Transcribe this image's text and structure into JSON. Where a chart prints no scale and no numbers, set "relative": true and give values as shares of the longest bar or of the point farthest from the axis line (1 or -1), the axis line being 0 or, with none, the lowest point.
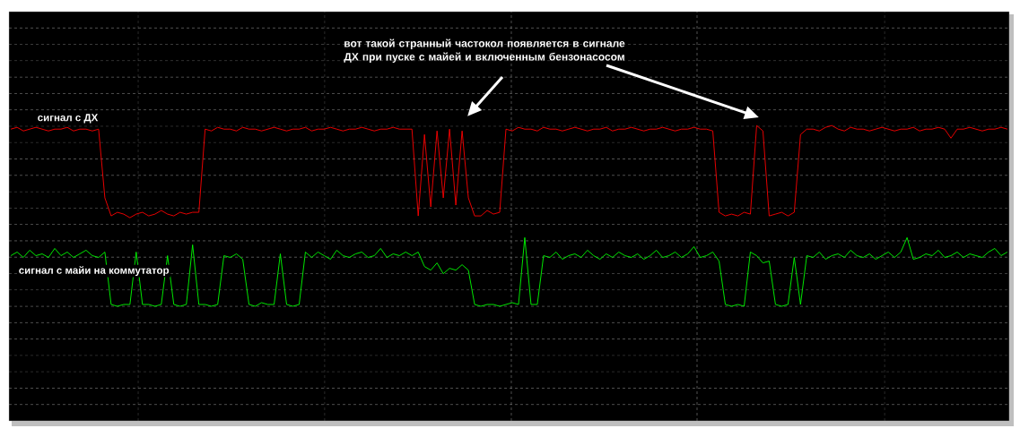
{
  "chart_data": {
    "type": "line",
    "relative": true,
    "grid": true,
    "annotations": [
      "вот такой странный частокол появляется в сигнале ДХ при пуске с майей и включенным бензонасосом"
    ],
    "categories": [
      null,
      null,
      null,
      null,
      null,
      null,
      null,
      null,
      null,
      null,
      null,
      null,
      null,
      null,
      null,
      null,
      null,
      null,
      null,
      null,
      null,
      null,
      null,
      null,
      null,
      null,
      null,
      null,
      null,
      null,
      null,
      null,
      null,
      null,
      null,
      null,
      null,
      null,
      null,
      null,
      null,
      null,
      null,
      null,
      null,
      null,
      null,
      null,
      null,
      null,
      null,
      null,
      null,
      null,
      null,
      null,
      null,
      null,
      null,
      null,
      null,
      null,
      null,
      null,
      null,
      null,
      null,
      null,
      null,
      null,
      null,
      null,
      null,
      null,
      null,
      null,
      null,
      null,
      null,
      null,
      null,
      null,
      null,
      null,
      null,
      null,
      null,
      null,
      null,
      null,
      null,
      null,
      null,
      null,
      null,
      null,
      null,
      null,
      null,
      null,
      null,
      null,
      null,
      null,
      null,
      null,
      null,
      null,
      null,
      null,
      null,
      null,
      null,
      null,
      null,
      null,
      null,
      null,
      null,
      null,
      null,
      null,
      null,
      null,
      null,
      null,
      null,
      null,
      null,
      null,
      null,
      null,
      null,
      null,
      null,
      null,
      null,
      null,
      null,
      null,
      null,
      null,
      null,
      null,
      null,
      null,
      null,
      null,
      null,
      null,
      null,
      null,
      null,
      null,
      null,
      null,
      null,
      null,
      null,
      null
    ],
    "series": [
      {
        "name": "сигнал с ДХ",
        "color": "#ff0000",
        "values": [
          0.98,
          0.99,
          0.97,
          0.98,
          0.99,
          0.98,
          0.97,
          0.98,
          0.98,
          0.99,
          0.97,
          0.98,
          0.98,
          0.97,
          0.98,
          0.6,
          0.5,
          0.52,
          0.51,
          0.49,
          0.51,
          0.52,
          0.5,
          0.51,
          0.53,
          0.51,
          0.5,
          0.52,
          0.51,
          0.52,
          0.52,
          0.98,
          0.97,
          0.99,
          0.98,
          0.98,
          0.97,
          0.99,
          0.98,
          0.98,
          0.97,
          0.98,
          0.99,
          0.98,
          0.97,
          0.98,
          0.98,
          0.99,
          0.97,
          0.98,
          0.98,
          0.99,
          0.98,
          0.97,
          0.98,
          0.98,
          0.99,
          0.98,
          0.97,
          0.98,
          0.98,
          0.99,
          0.98,
          0.98,
          0.98,
          0.5,
          0.95,
          0.55,
          0.97,
          0.6,
          0.98,
          0.56,
          0.97,
          0.6,
          0.5,
          0.5,
          0.53,
          0.51,
          0.52,
          0.98,
          0.97,
          0.99,
          0.98,
          0.98,
          0.97,
          0.99,
          0.98,
          0.98,
          0.97,
          0.98,
          0.99,
          0.98,
          0.97,
          0.98,
          0.98,
          0.99,
          0.97,
          0.98,
          0.98,
          0.99,
          0.98,
          0.97,
          0.98,
          0.98,
          0.99,
          0.98,
          0.97,
          0.98,
          0.98,
          0.99,
          0.98,
          0.98,
          0.97,
          0.52,
          0.5,
          0.51,
          0.5,
          0.52,
          0.51,
          1.0,
          0.97,
          0.5,
          0.51,
          0.52,
          0.5,
          0.52,
          0.95,
          0.98,
          0.98,
          0.97,
          0.99,
          1.0,
          0.98,
          0.97,
          0.99,
          0.98,
          0.98,
          0.97,
          0.98,
          0.99,
          0.98,
          0.97,
          0.98,
          0.98,
          0.99,
          0.97,
          0.98,
          0.98,
          0.99,
          0.98,
          0.93,
          0.98,
          0.98,
          0.99,
          0.98,
          0.97,
          0.98,
          0.98,
          0.99,
          0.98
        ]
      },
      {
        "name": "сигнал с майи на коммутатор",
        "color": "#00ff00",
        "values": [
          0.28,
          0.3,
          0.27,
          0.31,
          0.28,
          0.29,
          0.27,
          0.32,
          0.28,
          0.3,
          0.27,
          0.29,
          0.31,
          0.28,
          0.27,
          0.3,
          0.01,
          0.0,
          0.01,
          0.01,
          0.3,
          0.01,
          0.01,
          0.0,
          0.01,
          0.28,
          0.01,
          0.0,
          0.01,
          0.34,
          0.01,
          0.01,
          0.0,
          0.01,
          0.28,
          0.27,
          0.29,
          0.26,
          0.01,
          0.0,
          0.02,
          0.01,
          0.01,
          0.29,
          0.01,
          0.0,
          0.01,
          0.3,
          0.27,
          0.3,
          0.28,
          0.26,
          0.31,
          0.28,
          0.27,
          0.29,
          0.3,
          0.27,
          0.28,
          0.32,
          0.27,
          0.29,
          0.28,
          0.3,
          0.28,
          0.3,
          0.22,
          0.2,
          0.24,
          0.18,
          0.21,
          0.2,
          0.23,
          0.2,
          0.01,
          0.0,
          0.01,
          0.01,
          0.0,
          0.01,
          0.02,
          0.01,
          0.38,
          0.01,
          0.01,
          0.28,
          0.27,
          0.3,
          0.26,
          0.28,
          0.29,
          0.27,
          0.31,
          0.28,
          0.26,
          0.29,
          0.27,
          0.3,
          0.28,
          0.27,
          0.29,
          0.26,
          0.28,
          0.31,
          0.27,
          0.28,
          0.3,
          0.27,
          0.29,
          0.33,
          0.27,
          0.28,
          0.3,
          0.25,
          0.01,
          0.0,
          0.01,
          0.0,
          0.3,
          0.28,
          0.24,
          0.25,
          0.01,
          0.0,
          0.01,
          0.27,
          0.01,
          0.28,
          0.27,
          0.3,
          0.26,
          0.28,
          0.29,
          0.27,
          0.31,
          0.28,
          0.27,
          0.29,
          0.26,
          0.28,
          0.3,
          0.27,
          0.3,
          0.38,
          0.26,
          0.27,
          0.29,
          0.28,
          0.31,
          0.27,
          0.28,
          0.3,
          0.27,
          0.29,
          0.28,
          0.27,
          0.3,
          0.32,
          0.28,
          0.3
        ]
      }
    ]
  }
}
